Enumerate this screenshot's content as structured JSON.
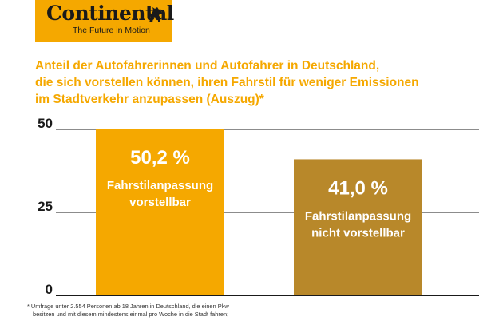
{
  "brand": {
    "name": "Continental",
    "tagline": "The Future in Motion",
    "color": "#f5a800",
    "icon": "horse-icon"
  },
  "heading_lines": [
    "Anteil der Autofahrerinnen und Autofahrer in Deutschland,",
    "die sich vorstellen können, ihren Fahrstil für weniger Emissionen",
    "im Stadtverkehr anzupassen (Auszug)*"
  ],
  "footnote_lines": [
    "* Umfrage unter 2.554 Personen ab 18 Jahren in Deutschland, die einen Pkw",
    "besitzen und mit diesem mindestens einmal pro Woche in die Stadt fahren;"
  ],
  "chart_data": {
    "type": "bar",
    "categories": [
      "Fahrstilanpassung vorstellbar",
      "Fahrstilanpassung nicht vorstellbar"
    ],
    "values": [
      50.2,
      41.0
    ],
    "value_labels": [
      "50,2 %",
      "41,0 %"
    ],
    "category_label_lines": [
      [
        "Fahrstilanpassung",
        "vorstellbar"
      ],
      [
        "Fahrstilanpassung",
        "nicht vorstellbar"
      ]
    ],
    "colors": [
      "#f5a800",
      "#b8882a"
    ],
    "ylim": [
      0,
      50
    ],
    "yticks": [
      "0",
      "25",
      "50"
    ],
    "ytick_values": [
      0,
      25,
      50
    ],
    "grid": true,
    "xlabel": "",
    "ylabel": ""
  }
}
